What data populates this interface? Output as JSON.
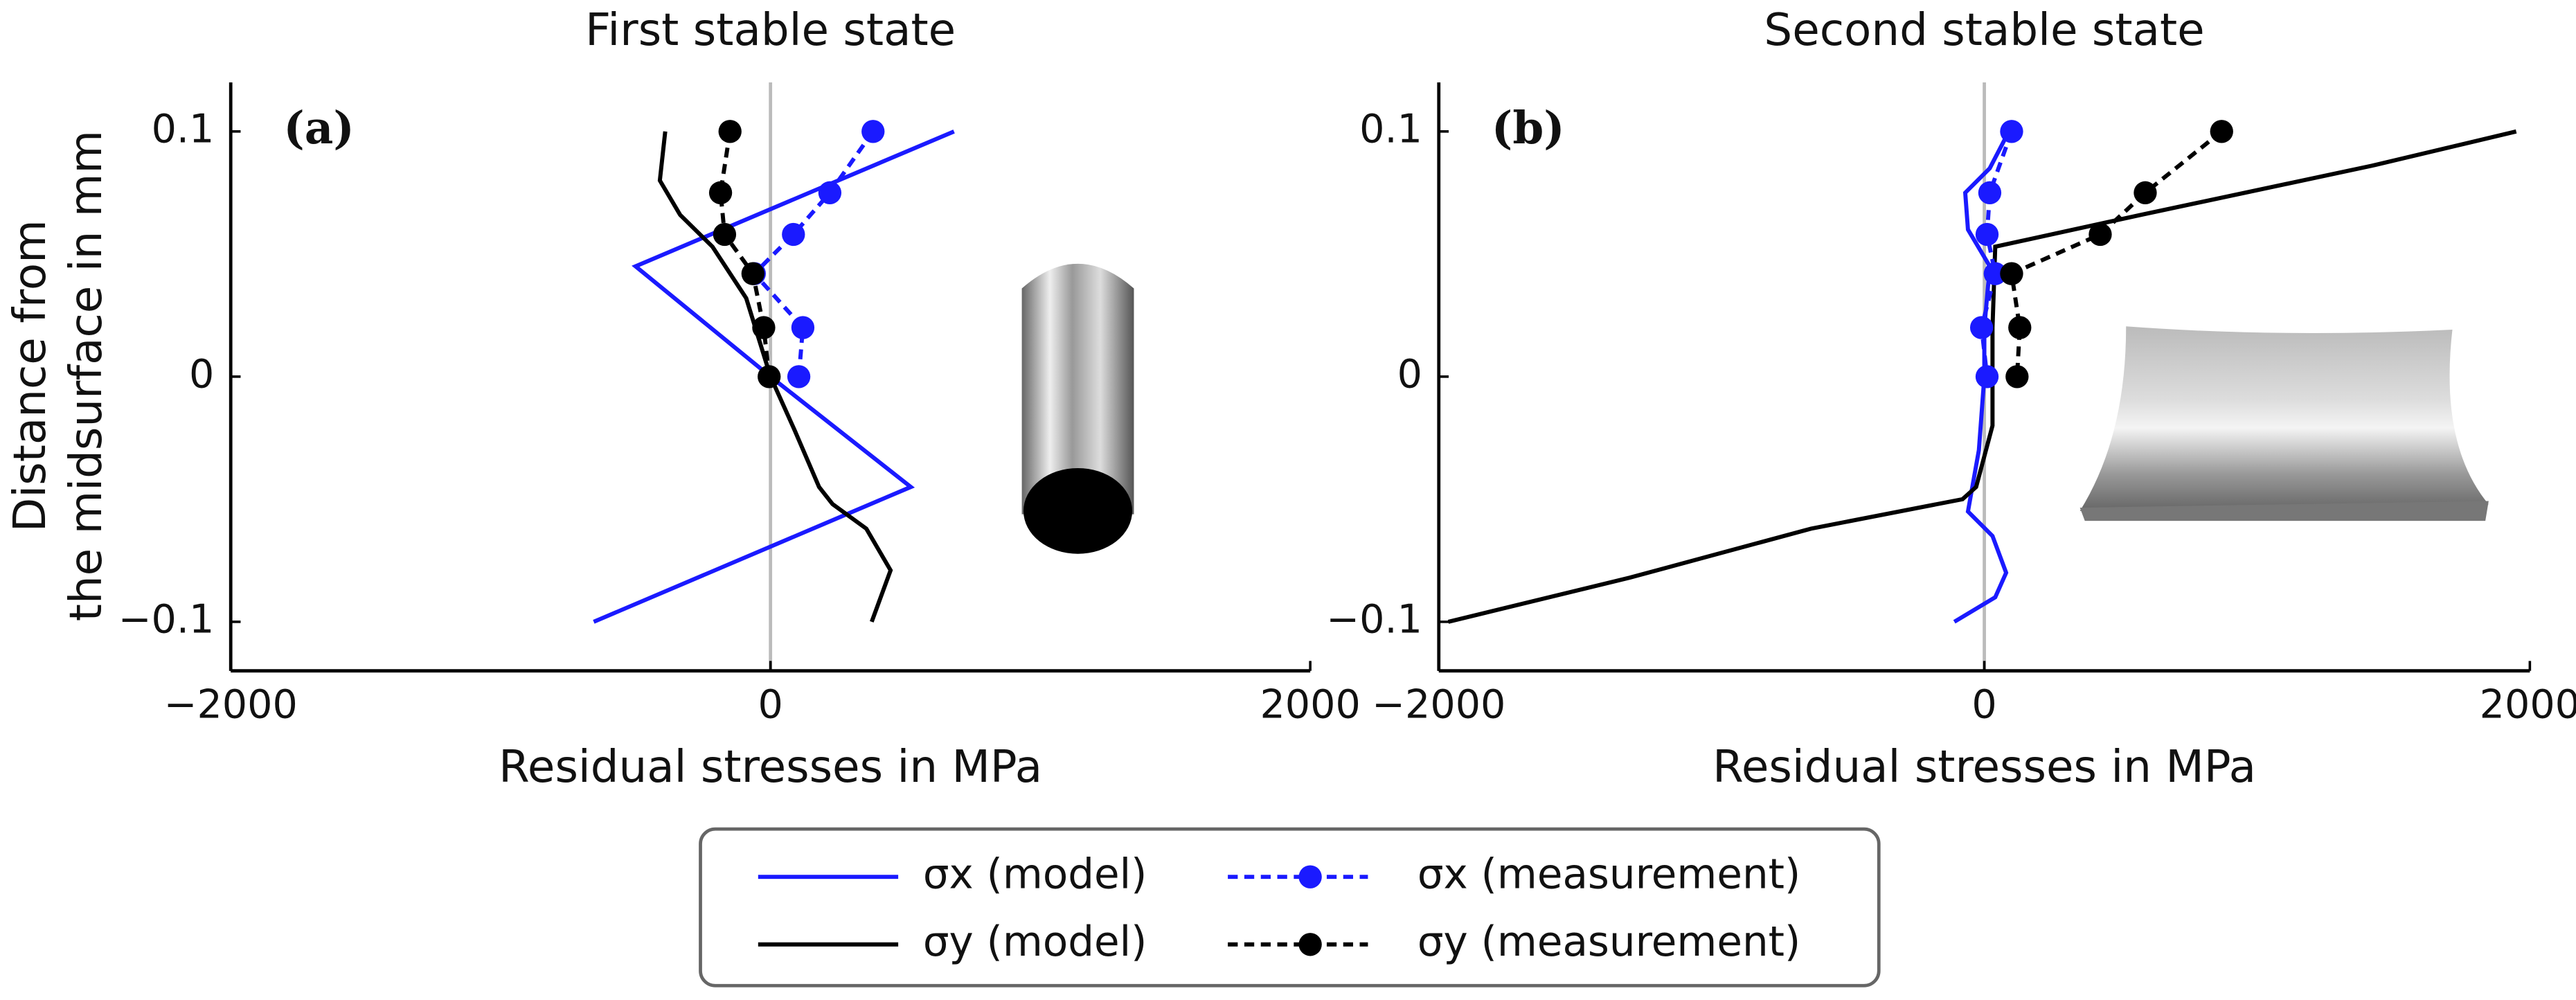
{
  "chart_data": [
    {
      "type": "line",
      "title": "First stable state",
      "panel_label": "(a)",
      "xlabel": "Residual stresses in MPa",
      "ylabel": [
        "Distance from",
        "the midsurface in mm"
      ],
      "xlim": [
        -2000,
        2000
      ],
      "ylim": [
        -0.12,
        0.12
      ],
      "xticks": [
        {
          "value": -2000,
          "label": "−2000"
        },
        0,
        2000
      ],
      "yticks": [
        {
          "value": -0.1,
          "label": "−0.1"
        },
        0,
        0.1
      ],
      "xline": 0,
      "series": [
        {
          "name": "σx (model)",
          "color": "#1a1aff",
          "style": "solid",
          "marker": false,
          "x": [
            680,
            -500,
            0,
            520,
            -655
          ],
          "y": [
            0.1,
            0.045,
            0,
            -0.045,
            -0.1
          ]
        },
        {
          "name": "σy (model)",
          "color": "#000000",
          "style": "solid",
          "marker": false,
          "x": [
            -390,
            -410,
            -335,
            -215,
            -90,
            0,
            90,
            180,
            230,
            355,
            445,
            375
          ],
          "y": [
            0.1,
            0.08,
            0.066,
            0.053,
            0.032,
            0,
            -0.022,
            -0.045,
            -0.052,
            -0.062,
            -0.079,
            -0.1
          ]
        },
        {
          "name": "σx (measurement)",
          "color": "#1a1aff",
          "style": "dashed",
          "marker": true,
          "x": [
            380,
            220,
            85,
            -60,
            120,
            105
          ],
          "y": [
            0.1,
            0.075,
            0.058,
            0.042,
            0.02,
            0
          ]
        },
        {
          "name": "σy (measurement)",
          "color": "#000000",
          "style": "dashed",
          "marker": true,
          "x": [
            -150,
            -185,
            -170,
            -65,
            -25,
            -5
          ],
          "y": [
            0.1,
            0.075,
            0.058,
            0.042,
            0.02,
            0
          ]
        }
      ]
    },
    {
      "type": "line",
      "title": "Second stable state",
      "panel_label": "(b)",
      "xlabel": "Residual stresses in MPa",
      "xlim": [
        -2000,
        2000
      ],
      "ylim": [
        -0.12,
        0.12
      ],
      "xticks": [
        {
          "value": -2000,
          "label": "−2000"
        },
        0,
        2000
      ],
      "yticks": [
        {
          "value": -0.1,
          "label": "−0.1"
        },
        0,
        0.1
      ],
      "xline": 0,
      "series": [
        {
          "color": "#1a1aff",
          "style": "solid",
          "marker": false,
          "x": [
            90,
            20,
            -70,
            -60,
            20,
            0,
            0,
            -20,
            -60,
            30,
            80,
            40,
            -110
          ],
          "y": [
            0.1,
            0.085,
            0.075,
            0.06,
            0.045,
            0.02,
            0,
            -0.03,
            -0.055,
            -0.065,
            -0.08,
            -0.09,
            -0.1
          ]
        },
        {
          "color": "#000000",
          "style": "solid",
          "marker": false,
          "x": [
            1950,
            1420,
            575,
            40,
            30,
            30,
            -30,
            -80,
            -635,
            -1300,
            -1965
          ],
          "y": [
            0.1,
            0.086,
            0.066,
            0.053,
            0.02,
            -0.02,
            -0.045,
            -0.05,
            -0.062,
            -0.082,
            -0.1
          ]
        },
        {
          "color": "#1a1aff",
          "style": "dashed",
          "marker": true,
          "x": [
            100,
            20,
            10,
            40,
            -10,
            10
          ],
          "y": [
            0.1,
            0.075,
            0.058,
            0.042,
            0.02,
            0
          ]
        },
        {
          "color": "#000000",
          "style": "dashed",
          "marker": true,
          "x": [
            870,
            590,
            425,
            100,
            130,
            120
          ],
          "y": [
            0.1,
            0.075,
            0.058,
            0.042,
            0.02,
            0
          ]
        }
      ]
    }
  ]
}
